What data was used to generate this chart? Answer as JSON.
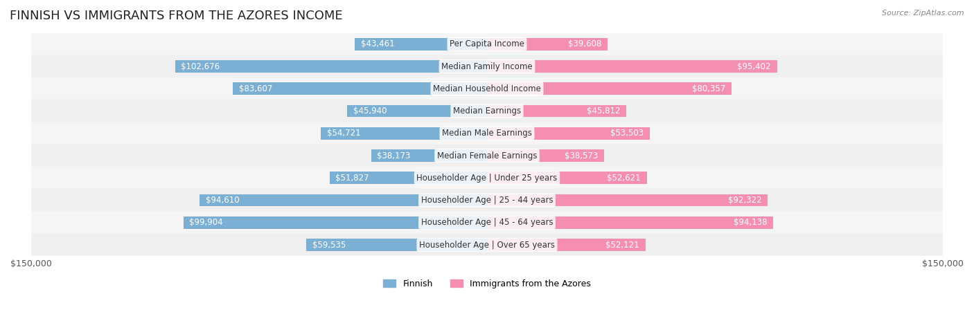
{
  "title": "FINNISH VS IMMIGRANTS FROM THE AZORES INCOME",
  "source": "Source: ZipAtlas.com",
  "categories": [
    "Per Capita Income",
    "Median Family Income",
    "Median Household Income",
    "Median Earnings",
    "Median Male Earnings",
    "Median Female Earnings",
    "Householder Age | Under 25 years",
    "Householder Age | 25 - 44 years",
    "Householder Age | 45 - 64 years",
    "Householder Age | Over 65 years"
  ],
  "finnish_values": [
    43461,
    102676,
    83607,
    45940,
    54721,
    38173,
    51827,
    94610,
    99904,
    59535
  ],
  "azores_values": [
    39608,
    95402,
    80357,
    45812,
    53503,
    38573,
    52621,
    92322,
    94138,
    52121
  ],
  "finnish_labels": [
    "$43,461",
    "$102,676",
    "$83,607",
    "$45,940",
    "$54,721",
    "$38,173",
    "$51,827",
    "$94,610",
    "$99,904",
    "$59,535"
  ],
  "azores_labels": [
    "$39,608",
    "$95,402",
    "$80,357",
    "$45,812",
    "$53,503",
    "$38,573",
    "$52,621",
    "$92,322",
    "$94,138",
    "$52,121"
  ],
  "finnish_color": "#7bafd4",
  "azores_color": "#f48fb1",
  "finnish_color_dark": "#5b9dc8",
  "azores_color_dark": "#f06292",
  "label_color_inside": "#ffffff",
  "label_color_outside": "#555555",
  "max_value": 150000,
  "bar_height": 0.55,
  "row_bg_colors": [
    "#f5f5f5",
    "#efefef"
  ],
  "background_color": "#ffffff",
  "title_fontsize": 13,
  "label_fontsize": 8.5,
  "category_fontsize": 8.5,
  "legend_label_finnish": "Finnish",
  "legend_label_azores": "Immigrants from the Azores"
}
